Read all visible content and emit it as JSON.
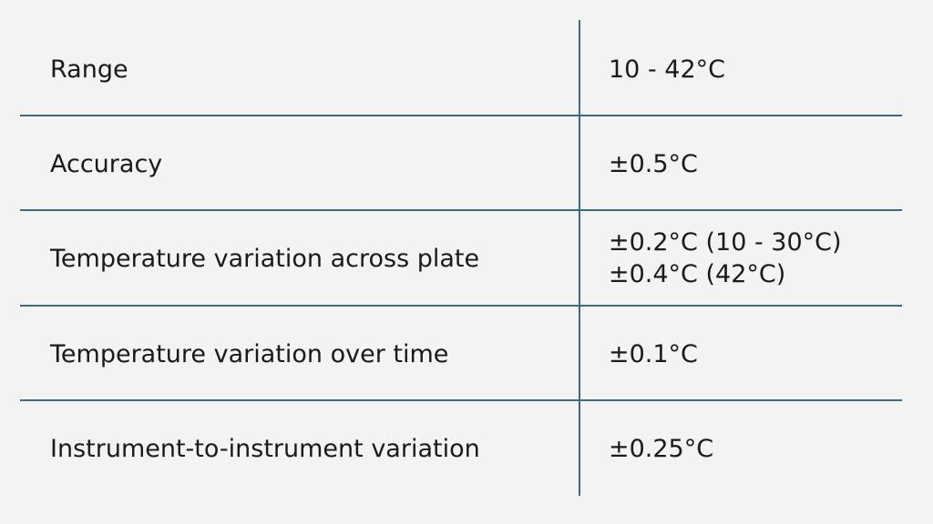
{
  "rows": [
    {
      "label": "Range",
      "values": [
        "10 - 42°C"
      ]
    },
    {
      "label": "Accuracy",
      "values": [
        "±0.5°C"
      ]
    },
    {
      "label": "Temperature variation across plate",
      "values": [
        "±0.2°C (10 - 30°C)",
        "±0.4°C (42°C)"
      ]
    },
    {
      "label": "Temperature variation over time",
      "values": [
        "±0.1°C"
      ]
    },
    {
      "label": "Instrument-to-instrument variation",
      "values": [
        "±0.25°C"
      ]
    }
  ],
  "colors": {
    "background": "#f2f3f2",
    "rule": "#3d6b7d"
  }
}
